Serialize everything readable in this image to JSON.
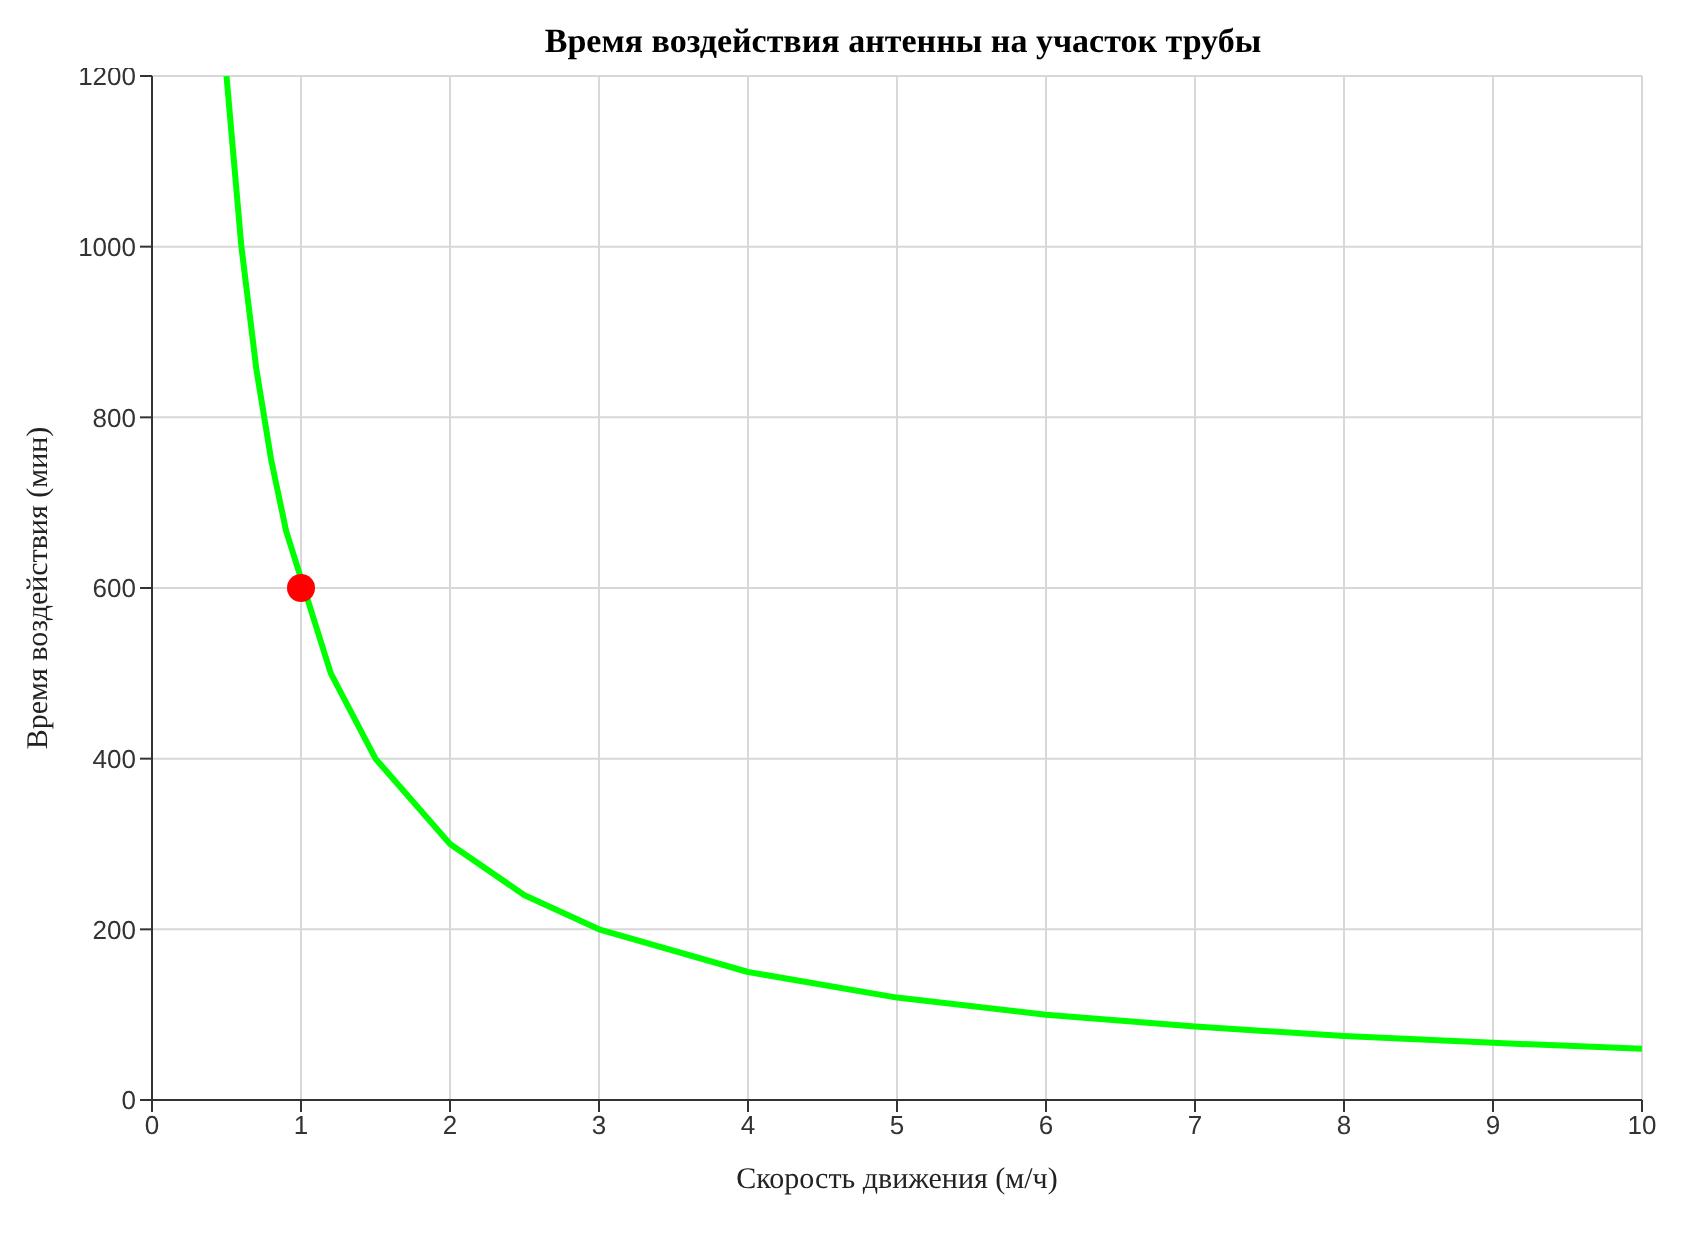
{
  "chart_data": {
    "type": "line",
    "title": "Время воздействия антенны на участок трубы",
    "xlabel": "Скорость движения (м/ч)",
    "ylabel": "Время воздействия (мин)",
    "series": [
      {
        "marker": "none",
        "color": "#00ff00",
        "x": [
          0.5,
          0.6,
          0.7,
          0.8,
          0.9,
          1.2,
          1.5,
          2,
          2.5,
          3,
          4,
          5,
          6,
          7,
          8,
          9,
          10
        ],
        "values": [
          1200,
          1000,
          857,
          750,
          667,
          500,
          400,
          300,
          240,
          200,
          150,
          120,
          100,
          86,
          75,
          67,
          60
        ]
      },
      {
        "type": "scatter",
        "marker": "circle",
        "color": "#ff0000",
        "x": [
          1
        ],
        "values": [
          600
        ]
      }
    ],
    "xlim": [
      0,
      10
    ],
    "xticks": [
      0,
      1,
      2,
      3,
      4,
      5,
      6,
      7,
      8,
      9,
      10
    ],
    "ylim": [
      0,
      1200
    ],
    "yticks": [
      0,
      200,
      400,
      600,
      800,
      1000,
      1200
    ],
    "grid": true,
    "line_style": "solid"
  }
}
